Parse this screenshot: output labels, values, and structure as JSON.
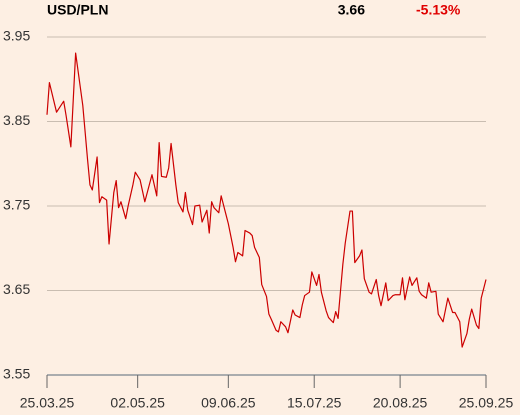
{
  "chart_data": {
    "type": "line",
    "title": "USD/PLN",
    "last_value": "3.66",
    "change": "-5.13%",
    "x": [
      "25.03.25",
      "26.03.25",
      "29.03.25",
      "01.04.25",
      "02.04.25",
      "04.04.25",
      "06.04.25",
      "09.04.25",
      "11.04.25",
      "12.04.25",
      "13.04.25",
      "15.04.25",
      "16.04.25",
      "17.04.25",
      "19.04.25",
      "20.04.25",
      "22.04.25",
      "23.04.25",
      "24.04.25",
      "25.04.25",
      "27.04.25",
      "28.04.25",
      "30.04.25",
      "01.05.25",
      "03.05.25",
      "05.05.25",
      "08.05.25",
      "10.05.25",
      "11.05.25",
      "12.05.25",
      "14.05.25",
      "15.05.25",
      "16.05.25",
      "18.05.25",
      "19.05.25",
      "21.05.25",
      "22.05.25",
      "23.05.25",
      "25.05.25",
      "26.05.25",
      "28.05.25",
      "29.05.25",
      "31.05.25",
      "01.06.25",
      "02.06.25",
      "03.06.25",
      "05.06.25",
      "06.06.25",
      "08.06.25",
      "09.06.25",
      "11.06.25",
      "12.06.25",
      "13.06.25",
      "15.06.25",
      "16.06.25",
      "18.06.25",
      "19.06.25",
      "20.06.25",
      "22.06.25",
      "23.06.25",
      "25.06.25",
      "26.06.25",
      "27.06.25",
      "29.06.25",
      "30.06.25",
      "01.07.25",
      "03.07.25",
      "04.07.25",
      "06.07.25",
      "07.07.25",
      "09.07.25",
      "10.07.25",
      "11.07.25",
      "13.07.25",
      "14.07.25",
      "16.07.25",
      "17.07.25",
      "18.07.25",
      "20.07.25",
      "21.07.25",
      "23.07.25",
      "24.07.25",
      "25.07.25",
      "27.07.25",
      "28.07.25",
      "30.07.25",
      "31.07.25",
      "01.08.25",
      "03.08.25",
      "04.08.25",
      "05.08.25",
      "07.08.25",
      "08.08.25",
      "10.08.25",
      "11.08.25",
      "12.08.25",
      "14.08.25",
      "15.08.25",
      "17.08.25",
      "18.08.25",
      "20.08.25",
      "21.08.25",
      "22.08.25",
      "24.08.25",
      "25.08.25",
      "27.08.25",
      "28.08.25",
      "29.08.25",
      "31.08.25",
      "01.09.25",
      "02.09.25",
      "04.09.25",
      "05.09.25",
      "07.09.25",
      "08.09.25",
      "09.09.25",
      "11.09.25",
      "12.09.25",
      "14.09.25",
      "15.09.25",
      "17.09.25",
      "18.09.25",
      "19.09.25",
      "21.09.25",
      "22.09.25",
      "23.09.25",
      "25.09.25"
    ],
    "series": [
      {
        "name": "USD/PLN",
        "color": "#cc0000",
        "values": [
          3.858,
          3.896,
          3.861,
          3.874,
          3.857,
          3.82,
          3.931,
          3.869,
          3.805,
          3.775,
          3.769,
          3.808,
          3.754,
          3.761,
          3.757,
          3.705,
          3.766,
          3.78,
          3.748,
          3.755,
          3.735,
          3.75,
          3.775,
          3.79,
          3.781,
          3.755,
          3.787,
          3.762,
          3.825,
          3.785,
          3.784,
          3.795,
          3.824,
          3.775,
          3.754,
          3.743,
          3.766,
          3.745,
          3.728,
          3.75,
          3.751,
          3.731,
          3.745,
          3.718,
          3.755,
          3.748,
          3.742,
          3.762,
          3.74,
          3.729,
          3.701,
          3.684,
          3.695,
          3.691,
          3.721,
          3.718,
          3.715,
          3.701,
          3.689,
          3.657,
          3.643,
          3.622,
          3.616,
          3.603,
          3.601,
          3.613,
          3.607,
          3.6,
          3.627,
          3.621,
          3.618,
          3.633,
          3.644,
          3.648,
          3.672,
          3.656,
          3.669,
          3.648,
          3.626,
          3.618,
          3.612,
          3.625,
          3.617,
          3.681,
          3.706,
          3.744,
          3.744,
          3.683,
          3.691,
          3.698,
          3.664,
          3.648,
          3.646,
          3.663,
          3.644,
          3.632,
          3.659,
          3.638,
          3.644,
          3.645,
          3.645,
          3.665,
          3.639,
          3.666,
          3.656,
          3.665,
          3.649,
          3.645,
          3.641,
          3.659,
          3.648,
          3.649,
          3.622,
          3.613,
          3.627,
          3.641,
          3.624,
          3.624,
          3.613,
          3.583,
          3.599,
          3.616,
          3.628,
          3.609,
          3.605,
          3.641,
          3.663
        ]
      }
    ],
    "xlim": [
      "25.03.25",
      "25.09.25"
    ],
    "xticks": [
      "25.03.25",
      "02.05.25",
      "09.06.25",
      "15.07.25",
      "20.08.25",
      "25.09.25"
    ],
    "ylim": [
      3.55,
      3.95
    ],
    "yticks": [
      3.55,
      {
        "value": 3.65,
        "label": "3.65"
      },
      {
        "value": 3.75,
        "label": "3.75"
      },
      {
        "value": 3.85,
        "label": "3.85"
      },
      3.95
    ],
    "grid": true
  }
}
